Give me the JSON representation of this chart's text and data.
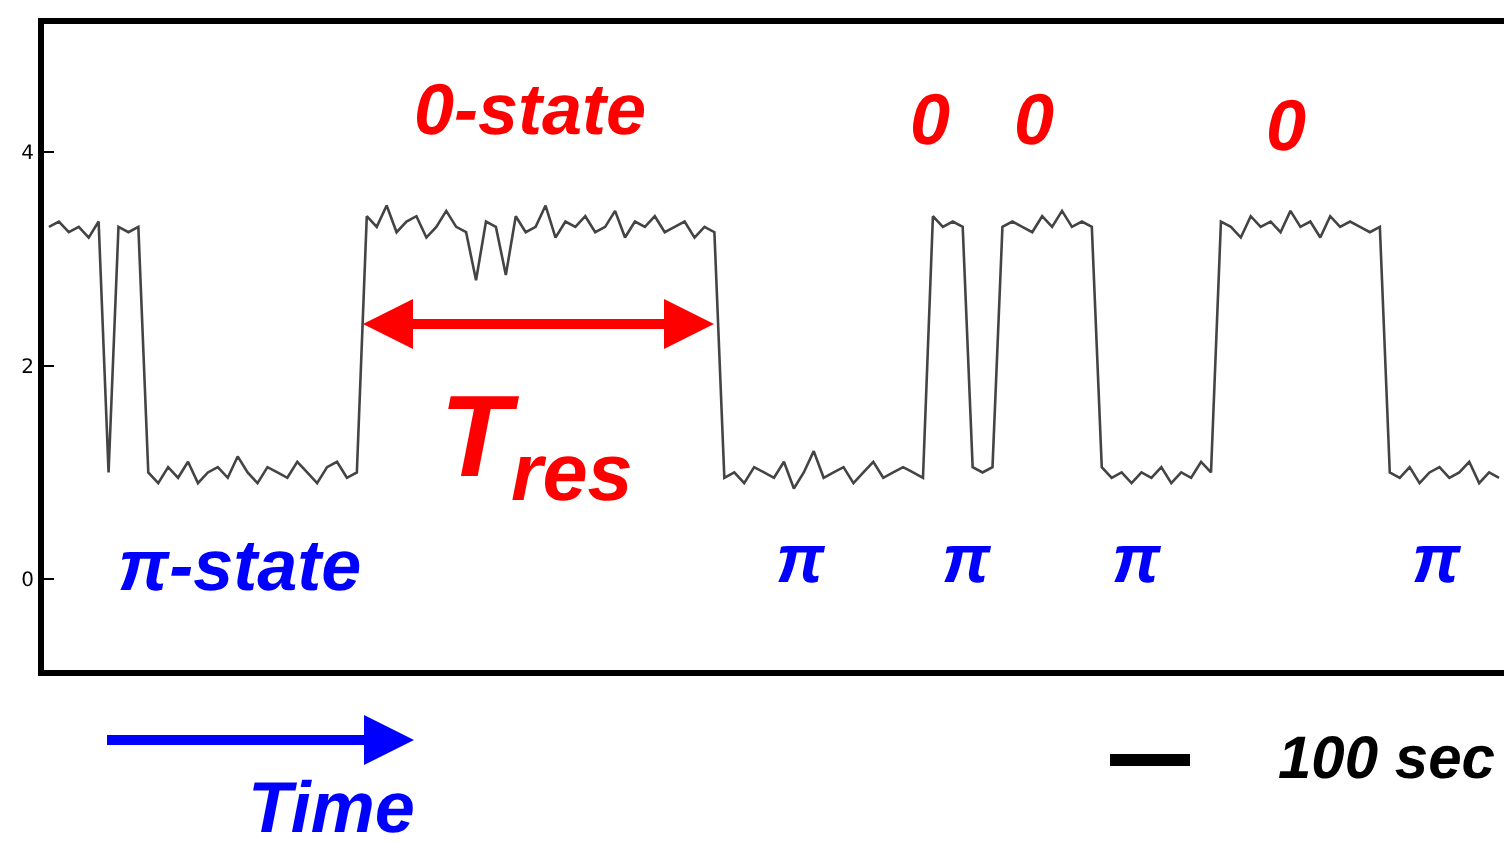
{
  "chart_data": {
    "type": "line",
    "categories": [
      null,
      null,
      null,
      null,
      null,
      null,
      null,
      null,
      null,
      null,
      null,
      null,
      null,
      null,
      null,
      null,
      null,
      null,
      null,
      null,
      null,
      null,
      null,
      null,
      null,
      null,
      null,
      null,
      null,
      null,
      null,
      null,
      null,
      null,
      null,
      null,
      null,
      null,
      null,
      null,
      null,
      null,
      null,
      null,
      null,
      null,
      null,
      null,
      null,
      null,
      null,
      null,
      null,
      null,
      null,
      null,
      null,
      null,
      null,
      null,
      null,
      null,
      null,
      null,
      null,
      null,
      null,
      null,
      null,
      null,
      null,
      null,
      null,
      null,
      null,
      null,
      null,
      null,
      null,
      null,
      null,
      null,
      null,
      null,
      null,
      null,
      null,
      null,
      null,
      null,
      null,
      null,
      null,
      null,
      null,
      null,
      null,
      null,
      null,
      null,
      null,
      null,
      null,
      null,
      null,
      null,
      null,
      null,
      null,
      null,
      null,
      null,
      null,
      null,
      null,
      null,
      null,
      null,
      null,
      null,
      null,
      null,
      null,
      null,
      null,
      null,
      null,
      null,
      null,
      null,
      null,
      null,
      null,
      null,
      null,
      null,
      null,
      null,
      null,
      null,
      null,
      null,
      null,
      null,
      null,
      null,
      null
    ],
    "series": [
      {
        "color": "#444444",
        "values": [
          3.3,
          3.35,
          3.25,
          3.3,
          3.2,
          3.35,
          1.0,
          3.3,
          3.25,
          3.3,
          1.0,
          0.9,
          1.05,
          0.95,
          1.1,
          0.9,
          1.0,
          1.05,
          0.95,
          1.15,
          1.0,
          0.9,
          1.05,
          1.0,
          0.95,
          1.1,
          1.0,
          0.9,
          1.05,
          1.1,
          0.95,
          1.0,
          3.4,
          3.3,
          3.5,
          3.25,
          3.35,
          3.4,
          3.2,
          3.3,
          3.45,
          3.3,
          3.25,
          2.8,
          3.35,
          3.3,
          2.85,
          3.4,
          3.25,
          3.3,
          3.5,
          3.2,
          3.35,
          3.3,
          3.4,
          3.25,
          3.3,
          3.45,
          3.2,
          3.35,
          3.3,
          3.4,
          3.25,
          3.3,
          3.35,
          3.2,
          3.3,
          3.25,
          0.95,
          1.0,
          0.9,
          1.05,
          1.0,
          0.95,
          1.1,
          0.85,
          1.0,
          1.2,
          0.95,
          1.0,
          1.05,
          0.9,
          1.0,
          1.1,
          0.95,
          1.0,
          1.05,
          1.0,
          0.95,
          3.4,
          3.3,
          3.35,
          3.3,
          1.05,
          1.0,
          1.05,
          3.3,
          3.35,
          3.3,
          3.25,
          3.4,
          3.3,
          3.45,
          3.3,
          3.35,
          3.3,
          1.05,
          0.95,
          1.0,
          0.9,
          1.0,
          0.95,
          1.05,
          0.9,
          1.0,
          0.95,
          1.1,
          1.0,
          3.35,
          3.3,
          3.2,
          3.4,
          3.3,
          3.35,
          3.25,
          3.45,
          3.3,
          3.35,
          3.2,
          3.4,
          3.3,
          3.35,
          3.3,
          3.25,
          3.3,
          1.0,
          0.95,
          1.05,
          0.9,
          1.0,
          1.05,
          0.95,
          1.0,
          1.1,
          0.9,
          1.0,
          0.95
        ]
      }
    ],
    "ylim": [
      -0.85,
      5.2
    ],
    "yticks": [
      0,
      2,
      4
    ],
    "tick_labels": "y",
    "marker": "none",
    "line_style": "solid",
    "annotations": [
      "0-state",
      "0",
      "0",
      "0",
      "π-state",
      "π",
      "π",
      "π",
      "π",
      "T$_{res}$",
      "Time",
      "100 sec"
    ]
  }
}
